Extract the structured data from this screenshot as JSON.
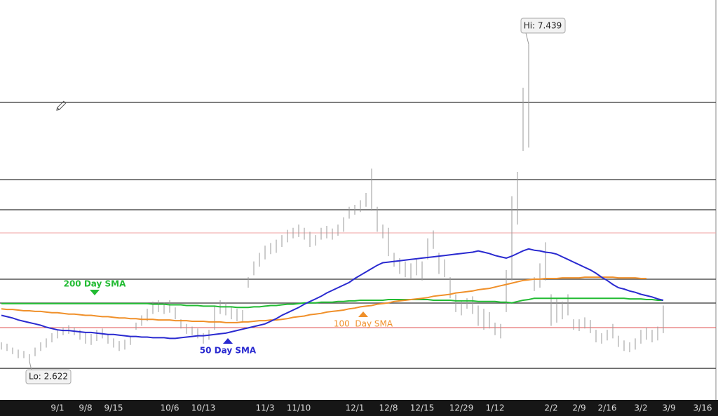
{
  "chart_data": {
    "type": "range",
    "categories": [
      null,
      null,
      null,
      null,
      null,
      null,
      null,
      null,
      null,
      null,
      "9/1",
      null,
      null,
      null,
      null,
      "9/8",
      null,
      null,
      null,
      null,
      "9/15",
      null,
      null,
      null,
      null,
      null,
      null,
      null,
      null,
      null,
      "10/6",
      null,
      null,
      null,
      null,
      null,
      "10/13",
      null,
      null,
      null,
      null,
      null,
      null,
      null,
      null,
      null,
      null,
      "11/3",
      null,
      null,
      null,
      null,
      null,
      "11/10",
      null,
      null,
      null,
      null,
      null,
      null,
      null,
      null,
      null,
      "12/1",
      null,
      null,
      null,
      null,
      null,
      "12/8",
      null,
      null,
      null,
      null,
      null,
      "12/15",
      null,
      null,
      null,
      null,
      null,
      null,
      "12/29",
      null,
      null,
      null,
      null,
      null,
      "1/12",
      null,
      null,
      null,
      null,
      null,
      null,
      null,
      null,
      null,
      "2/2",
      null,
      null,
      null,
      null,
      "2/9",
      null,
      null,
      null,
      null,
      "2/16",
      null,
      null,
      null,
      null,
      null,
      "3/2",
      null,
      null,
      null,
      null,
      "3/9",
      null,
      null,
      null,
      null,
      null,
      "3/16"
    ],
    "high": [
      2.91,
      2.89,
      2.83,
      2.8,
      2.78,
      2.73,
      2.83,
      2.91,
      2.97,
      3.05,
      3.1,
      3.14,
      3.17,
      3.14,
      3.1,
      3.06,
      3.04,
      3.1,
      3.12,
      3.04,
      2.97,
      2.93,
      2.95,
      2.99,
      3.21,
      3.32,
      3.42,
      3.53,
      3.55,
      3.51,
      3.55,
      3.44,
      3.26,
      3.19,
      3.15,
      3.12,
      3.05,
      3.1,
      3.46,
      3.55,
      3.51,
      3.44,
      3.42,
      3.4,
      3.9,
      4.14,
      4.27,
      4.38,
      4.42,
      4.47,
      4.54,
      4.62,
      4.65,
      4.7,
      4.65,
      4.59,
      4.54,
      4.65,
      4.68,
      4.64,
      4.7,
      4.81,
      4.97,
      5.0,
      5.07,
      5.18,
      5.55,
      4.97,
      4.7,
      4.65,
      4.27,
      4.19,
      4.14,
      4.11,
      4.17,
      4.14,
      4.49,
      4.61,
      4.27,
      4.17,
      3.9,
      3.64,
      3.53,
      3.58,
      3.61,
      3.47,
      3.42,
      3.37,
      3.21,
      3.19,
      4.01,
      5.13,
      5.5,
      6.78,
      7.439,
      3.9,
      4.11,
      4.43,
      3.64,
      3.58,
      3.53,
      3.64,
      3.26,
      3.26,
      3.29,
      3.25,
      3.1,
      3.05,
      3.1,
      3.19,
      3.01,
      2.94,
      2.91,
      2.97,
      3.1,
      3.14,
      3.1,
      3.15,
      3.47,
      null,
      null,
      null,
      null,
      null,
      null,
      null
    ],
    "low": [
      2.8,
      2.78,
      2.73,
      2.67,
      2.67,
      2.622,
      2.7,
      2.78,
      2.83,
      2.91,
      2.97,
      3.02,
      3.04,
      3.02,
      2.95,
      2.89,
      2.87,
      2.93,
      2.97,
      2.89,
      2.83,
      2.78,
      2.8,
      2.87,
      3.1,
      3.16,
      3.23,
      3.34,
      3.37,
      3.34,
      3.36,
      3.26,
      3.12,
      3.04,
      3.02,
      2.97,
      2.89,
      2.95,
      3.1,
      3.34,
      3.32,
      3.26,
      3.23,
      3.21,
      3.74,
      3.93,
      4.06,
      4.17,
      4.25,
      4.27,
      4.36,
      4.43,
      4.49,
      4.51,
      4.47,
      4.36,
      4.38,
      4.47,
      4.49,
      4.47,
      4.53,
      4.59,
      4.79,
      4.85,
      4.89,
      4.97,
      4.91,
      4.59,
      4.49,
      4.22,
      4.06,
      3.95,
      3.9,
      3.87,
      3.93,
      3.85,
      4.17,
      4.33,
      3.95,
      3.9,
      3.58,
      3.37,
      3.32,
      3.42,
      3.34,
      3.16,
      3.1,
      3.12,
      3.02,
      2.97,
      3.37,
      3.85,
      4.7,
      5.82,
      5.87,
      3.69,
      3.74,
      3.85,
      3.16,
      3.21,
      3.26,
      3.32,
      3.1,
      3.08,
      3.12,
      3.05,
      2.91,
      2.89,
      2.94,
      2.97,
      2.84,
      2.78,
      2.76,
      2.8,
      2.89,
      2.95,
      2.91,
      2.94,
      3.05,
      null,
      null,
      null,
      null,
      null,
      null,
      null
    ],
    "bar_color": "#9a9a9a",
    "series": [
      {
        "name": "200 Day SMA",
        "color": "#22bb33",
        "values": [
          3.5,
          3.5,
          3.5,
          3.5,
          3.5,
          3.5,
          3.5,
          3.5,
          3.5,
          3.5,
          3.5,
          3.5,
          3.5,
          3.5,
          3.5,
          3.5,
          3.5,
          3.5,
          3.5,
          3.5,
          3.5,
          3.5,
          3.5,
          3.5,
          3.5,
          3.5,
          3.5,
          3.49,
          3.49,
          3.49,
          3.48,
          3.48,
          3.48,
          3.47,
          3.47,
          3.47,
          3.46,
          3.46,
          3.46,
          3.45,
          3.45,
          3.45,
          3.44,
          3.44,
          3.44,
          3.45,
          3.45,
          3.46,
          3.47,
          3.47,
          3.48,
          3.49,
          3.49,
          3.5,
          3.51,
          3.51,
          3.51,
          3.52,
          3.52,
          3.52,
          3.53,
          3.53,
          3.54,
          3.54,
          3.55,
          3.55,
          3.55,
          3.55,
          3.55,
          3.56,
          3.56,
          3.56,
          3.56,
          3.56,
          3.56,
          3.56,
          3.56,
          3.55,
          3.55,
          3.55,
          3.55,
          3.54,
          3.54,
          3.54,
          3.54,
          3.53,
          3.53,
          3.53,
          3.53,
          3.52,
          3.52,
          3.51,
          3.53,
          3.55,
          3.56,
          3.58,
          3.58,
          3.58,
          3.58,
          3.58,
          3.58,
          3.58,
          3.58,
          3.58,
          3.58,
          3.58,
          3.58,
          3.58,
          3.58,
          3.58,
          3.58,
          3.58,
          3.57,
          3.57,
          3.57,
          3.56,
          3.56,
          3.55,
          3.55,
          null,
          null,
          null,
          null,
          null,
          null,
          null
        ]
      },
      {
        "name": "100  Day SMA",
        "color": "#f0902a",
        "values": [
          3.42,
          3.41,
          3.41,
          3.4,
          3.39,
          3.39,
          3.38,
          3.38,
          3.37,
          3.36,
          3.36,
          3.35,
          3.34,
          3.34,
          3.33,
          3.32,
          3.32,
          3.31,
          3.3,
          3.3,
          3.29,
          3.28,
          3.28,
          3.27,
          3.27,
          3.26,
          3.26,
          3.26,
          3.25,
          3.25,
          3.25,
          3.24,
          3.24,
          3.24,
          3.23,
          3.23,
          3.23,
          3.22,
          3.22,
          3.22,
          3.21,
          3.21,
          3.21,
          3.22,
          3.22,
          3.23,
          3.24,
          3.24,
          3.25,
          3.25,
          3.26,
          3.27,
          3.29,
          3.3,
          3.31,
          3.33,
          3.34,
          3.35,
          3.37,
          3.38,
          3.39,
          3.4,
          3.42,
          3.43,
          3.45,
          3.46,
          3.47,
          3.49,
          3.5,
          3.51,
          3.53,
          3.54,
          3.55,
          3.56,
          3.57,
          3.58,
          3.59,
          3.61,
          3.62,
          3.63,
          3.64,
          3.66,
          3.67,
          3.68,
          3.69,
          3.71,
          3.72,
          3.73,
          3.75,
          3.77,
          3.79,
          3.81,
          3.83,
          3.85,
          3.86,
          3.87,
          3.87,
          3.88,
          3.88,
          3.88,
          3.89,
          3.89,
          3.89,
          3.89,
          3.9,
          3.9,
          3.9,
          3.9,
          3.9,
          3.9,
          3.89,
          3.89,
          3.89,
          3.89,
          3.88,
          3.88,
          null,
          null,
          null,
          null,
          null,
          null,
          null,
          null,
          null,
          null
        ]
      },
      {
        "name": "50 Day SMA",
        "color": "#2a2ad0",
        "values": [
          3.32,
          3.3,
          3.28,
          3.25,
          3.23,
          3.21,
          3.19,
          3.17,
          3.14,
          3.12,
          3.1,
          3.09,
          3.09,
          3.08,
          3.07,
          3.06,
          3.06,
          3.05,
          3.04,
          3.03,
          3.03,
          3.02,
          3.01,
          3.0,
          3.0,
          2.99,
          2.99,
          2.98,
          2.98,
          2.98,
          2.97,
          2.97,
          2.98,
          2.99,
          3.0,
          3.01,
          3.01,
          3.02,
          3.03,
          3.04,
          3.05,
          3.07,
          3.09,
          3.11,
          3.13,
          3.15,
          3.17,
          3.19,
          3.23,
          3.27,
          3.32,
          3.36,
          3.4,
          3.44,
          3.49,
          3.53,
          3.57,
          3.61,
          3.66,
          3.7,
          3.74,
          3.78,
          3.82,
          3.88,
          3.93,
          3.98,
          4.03,
          4.08,
          4.12,
          4.13,
          4.14,
          4.15,
          4.16,
          4.17,
          4.18,
          4.19,
          4.2,
          4.21,
          4.22,
          4.23,
          4.24,
          4.25,
          4.26,
          4.27,
          4.28,
          4.3,
          4.28,
          4.26,
          4.23,
          4.21,
          4.19,
          4.22,
          4.26,
          4.3,
          4.33,
          4.31,
          4.3,
          4.28,
          4.27,
          4.25,
          4.21,
          4.17,
          4.13,
          4.09,
          4.05,
          4.01,
          3.96,
          3.9,
          3.85,
          3.79,
          3.74,
          3.72,
          3.69,
          3.67,
          3.64,
          3.62,
          3.6,
          3.57,
          3.55,
          null,
          null,
          null,
          null,
          null,
          null,
          null
        ]
      }
    ],
    "levels": [
      {
        "value": 6.556,
        "color": "#555555"
      },
      {
        "value": 5.383,
        "color": "#555555"
      },
      {
        "value": 4.925,
        "color": "#555555"
      },
      {
        "value": 4.573,
        "color": "#f0a0a0"
      },
      {
        "value": 3.869,
        "color": "#555555"
      },
      {
        "value": 3.507,
        "color": "#555555"
      },
      {
        "value": 3.134,
        "color": "#e05050"
      },
      {
        "value": 2.515,
        "color": "#555555"
      }
    ],
    "annotations": {
      "high": "Hi: 7.439",
      "low": "Lo: 2.622"
    },
    "ylim": [
      2.036,
      8.112
    ]
  }
}
